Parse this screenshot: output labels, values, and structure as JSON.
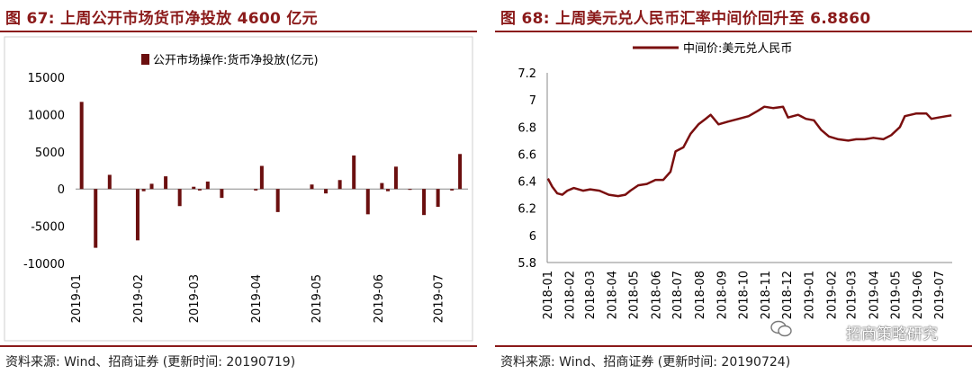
{
  "left": {
    "title": "图 67:  上周公开市场货币净投放 4600 亿元",
    "source": "资料来源:  Wind、招商证券 (更新时间:  20190719)",
    "chart_data": {
      "type": "bar",
      "legend": "公开市场操作:货币净投放(亿元)",
      "legend_position": "top",
      "ylim": [
        -10000,
        15000
      ],
      "yticks": [
        "15000",
        "10000",
        "5000",
        "0",
        "-5000",
        "-10000"
      ],
      "ytick_values": [
        15000,
        10000,
        5000,
        0,
        -5000,
        -10000
      ],
      "xticks": [
        "2019-01",
        "2019-02",
        "2019-03",
        "2019-04",
        "2019-05",
        "2019-06",
        "2019-07"
      ],
      "grid": false,
      "series": [
        {
          "color": "#6b0f0f",
          "points": [
            {
              "x": "2019-01-04",
              "y": 11700
            },
            {
              "x": "2019-01-11",
              "y": -7900
            },
            {
              "x": "2019-01-18",
              "y": 1900
            },
            {
              "x": "2019-02-01",
              "y": -6900
            },
            {
              "x": "2019-02-04",
              "y": -300
            },
            {
              "x": "2019-02-08",
              "y": 700
            },
            {
              "x": "2019-02-15",
              "y": 1700
            },
            {
              "x": "2019-02-22",
              "y": -2300
            },
            {
              "x": "2019-03-01",
              "y": 300
            },
            {
              "x": "2019-03-04",
              "y": -200
            },
            {
              "x": "2019-03-08",
              "y": 1000
            },
            {
              "x": "2019-03-15",
              "y": -1200
            },
            {
              "x": "2019-04-01",
              "y": -200
            },
            {
              "x": "2019-04-04",
              "y": 3100
            },
            {
              "x": "2019-04-12",
              "y": -3100
            },
            {
              "x": "2019-04-29",
              "y": 600
            },
            {
              "x": "2019-05-06",
              "y": -600
            },
            {
              "x": "2019-05-13",
              "y": 1200
            },
            {
              "x": "2019-05-20",
              "y": 4500
            },
            {
              "x": "2019-05-27",
              "y": -3400
            },
            {
              "x": "2019-06-03",
              "y": 800
            },
            {
              "x": "2019-06-06",
              "y": -300
            },
            {
              "x": "2019-06-10",
              "y": 3000
            },
            {
              "x": "2019-06-17",
              "y": -100
            },
            {
              "x": "2019-06-24",
              "y": -3500
            },
            {
              "x": "2019-07-01",
              "y": -2400
            },
            {
              "x": "2019-07-08",
              "y": -200
            },
            {
              "x": "2019-07-12",
              "y": 4700
            }
          ]
        }
      ]
    }
  },
  "right": {
    "title": "图 68:  上周美元兑人民币汇率中间价回升至 6.8860",
    "source": "资料来源:  Wind、招商证券 (更新时间:  20190724)",
    "watermark": "招商策略研究",
    "chart_data": {
      "type": "line",
      "legend": "中间价:美元兑人民币",
      "legend_position": "top",
      "ylim": [
        5.8,
        7.2
      ],
      "yticks": [
        "7.2",
        "7",
        "6.8",
        "6.6",
        "6.4",
        "6.2",
        "6",
        "5.8"
      ],
      "ytick_values": [
        7.2,
        7.0,
        6.8,
        6.6,
        6.4,
        6.2,
        6.0,
        5.8
      ],
      "xticks": [
        "2018-01",
        "2018-02",
        "2018-03",
        "2018-04",
        "2018-05",
        "2018-06",
        "2018-07",
        "2018-08",
        "2018-09",
        "2018-10",
        "2018-11",
        "2018-12",
        "2019-01",
        "2019-02",
        "2019-03",
        "2019-04",
        "2019-05",
        "2019-06",
        "2019-07"
      ],
      "grid": false,
      "series": [
        {
          "color": "#7a0f0f",
          "points": [
            {
              "x": "2018-01-02",
              "y": 6.42
            },
            {
              "x": "2018-01-08",
              "y": 6.36
            },
            {
              "x": "2018-01-15",
              "y": 6.31
            },
            {
              "x": "2018-01-22",
              "y": 6.3
            },
            {
              "x": "2018-01-29",
              "y": 6.33
            },
            {
              "x": "2018-02-07",
              "y": 6.35
            },
            {
              "x": "2018-02-20",
              "y": 6.33
            },
            {
              "x": "2018-03-02",
              "y": 6.34
            },
            {
              "x": "2018-03-15",
              "y": 6.33
            },
            {
              "x": "2018-03-28",
              "y": 6.3
            },
            {
              "x": "2018-04-10",
              "y": 6.29
            },
            {
              "x": "2018-04-20",
              "y": 6.3
            },
            {
              "x": "2018-04-27",
              "y": 6.33
            },
            {
              "x": "2018-05-08",
              "y": 6.37
            },
            {
              "x": "2018-05-20",
              "y": 6.38
            },
            {
              "x": "2018-06-01",
              "y": 6.41
            },
            {
              "x": "2018-06-12",
              "y": 6.41
            },
            {
              "x": "2018-06-22",
              "y": 6.47
            },
            {
              "x": "2018-06-29",
              "y": 6.62
            },
            {
              "x": "2018-07-10",
              "y": 6.65
            },
            {
              "x": "2018-07-20",
              "y": 6.75
            },
            {
              "x": "2018-07-31",
              "y": 6.82
            },
            {
              "x": "2018-08-10",
              "y": 6.86
            },
            {
              "x": "2018-08-17",
              "y": 6.89
            },
            {
              "x": "2018-08-28",
              "y": 6.82
            },
            {
              "x": "2018-09-10",
              "y": 6.84
            },
            {
              "x": "2018-09-25",
              "y": 6.86
            },
            {
              "x": "2018-10-09",
              "y": 6.88
            },
            {
              "x": "2018-10-22",
              "y": 6.92
            },
            {
              "x": "2018-10-31",
              "y": 6.95
            },
            {
              "x": "2018-11-12",
              "y": 6.94
            },
            {
              "x": "2018-11-26",
              "y": 6.95
            },
            {
              "x": "2018-12-03",
              "y": 6.87
            },
            {
              "x": "2018-12-17",
              "y": 6.89
            },
            {
              "x": "2018-12-28",
              "y": 6.86
            },
            {
              "x": "2019-01-08",
              "y": 6.85
            },
            {
              "x": "2019-01-18",
              "y": 6.78
            },
            {
              "x": "2019-01-29",
              "y": 6.73
            },
            {
              "x": "2019-02-11",
              "y": 6.71
            },
            {
              "x": "2019-02-25",
              "y": 6.7
            },
            {
              "x": "2019-03-08",
              "y": 6.71
            },
            {
              "x": "2019-03-20",
              "y": 6.71
            },
            {
              "x": "2019-04-01",
              "y": 6.72
            },
            {
              "x": "2019-04-15",
              "y": 6.71
            },
            {
              "x": "2019-04-26",
              "y": 6.74
            },
            {
              "x": "2019-05-08",
              "y": 6.8
            },
            {
              "x": "2019-05-15",
              "y": 6.88
            },
            {
              "x": "2019-05-31",
              "y": 6.9
            },
            {
              "x": "2019-06-14",
              "y": 6.9
            },
            {
              "x": "2019-06-21",
              "y": 6.86
            },
            {
              "x": "2019-07-01",
              "y": 6.87
            },
            {
              "x": "2019-07-12",
              "y": 6.88
            },
            {
              "x": "2019-07-19",
              "y": 6.886
            }
          ]
        }
      ]
    }
  }
}
